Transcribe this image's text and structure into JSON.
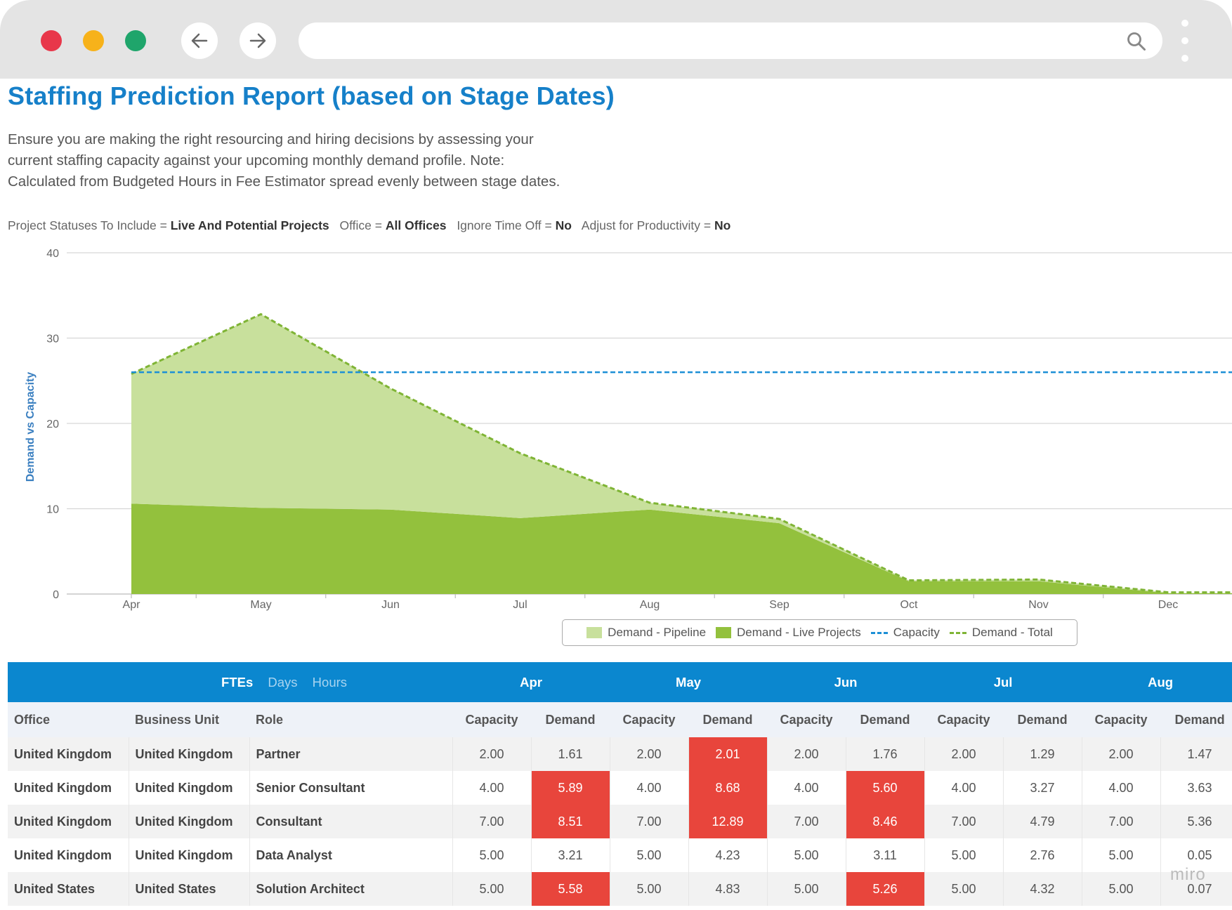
{
  "window": {
    "url": ""
  },
  "page": {
    "title": "Staffing Prediction Report (based on Stage Dates)",
    "description": [
      "Ensure you are making the right resourcing and hiring decisions by assessing your",
      "current staffing capacity against your upcoming monthly demand profile.  Note:",
      "Calculated from Budgeted Hours in Fee Estimator spread evenly between stage dates."
    ],
    "filters": [
      {
        "label": "Project Statuses To Include =",
        "value": "Live And Potential Projects"
      },
      {
        "label": "Office =",
        "value": "All Offices"
      },
      {
        "label": "Ignore Time Off =",
        "value": "No"
      },
      {
        "label": "Adjust for Productivity =",
        "value": "No"
      }
    ]
  },
  "chart_data": {
    "type": "area",
    "x": [
      "Apr",
      "May",
      "Jun",
      "Jul",
      "Aug",
      "Sep",
      "Oct",
      "Nov",
      "Dec"
    ],
    "ylabel": "Demand vs Capacity",
    "ylim": [
      0,
      40
    ],
    "yticks": [
      0,
      10,
      20,
      30,
      40
    ],
    "grid": true,
    "legend_position": "bottom",
    "series": [
      {
        "name": "Demand - Pipeline",
        "kind": "area",
        "color": "#c8e09c",
        "values": [
          15.2,
          22.7,
          14.2,
          7.6,
          0.8,
          0.5,
          0.1,
          0.2,
          0.1
        ]
      },
      {
        "name": "Demand - Live Projects",
        "kind": "area",
        "color": "#93c13d",
        "values": [
          10.6,
          10.1,
          9.9,
          8.9,
          9.9,
          8.3,
          1.5,
          1.5,
          0.1
        ]
      },
      {
        "name": "Capacity",
        "kind": "dashed-line",
        "color": "#1c8fd6",
        "values": [
          26,
          26,
          26,
          26,
          26,
          26,
          26,
          26,
          26
        ]
      },
      {
        "name": "Demand - Total",
        "kind": "dashed-line",
        "color": "#7fb435",
        "values": [
          25.8,
          32.8,
          24.1,
          16.5,
          10.7,
          8.8,
          1.6,
          1.7,
          0.2
        ]
      }
    ]
  },
  "table": {
    "units": [
      {
        "label": "FTEs",
        "active": true
      },
      {
        "label": "Days",
        "active": false
      },
      {
        "label": "Hours",
        "active": false
      }
    ],
    "months": [
      "Apr",
      "May",
      "Jun",
      "Jul",
      "Aug"
    ],
    "columns": [
      "Office",
      "Business Unit",
      "Role"
    ],
    "sub_columns": [
      "Capacity",
      "Demand"
    ],
    "rows": [
      {
        "office": "United Kingdom",
        "unit": "United Kingdom",
        "role": "Partner",
        "values": [
          "2.00",
          "1.61",
          "2.00",
          "2.01",
          "2.00",
          "1.76",
          "2.00",
          "1.29",
          "2.00",
          "1.47"
        ],
        "over": [
          false,
          false,
          false,
          true,
          false,
          false,
          false,
          false,
          false,
          false
        ]
      },
      {
        "office": "United Kingdom",
        "unit": "United Kingdom",
        "role": "Senior Consultant",
        "values": [
          "4.00",
          "5.89",
          "4.00",
          "8.68",
          "4.00",
          "5.60",
          "4.00",
          "3.27",
          "4.00",
          "3.63"
        ],
        "over": [
          false,
          true,
          false,
          true,
          false,
          true,
          false,
          false,
          false,
          false
        ]
      },
      {
        "office": "United Kingdom",
        "unit": "United Kingdom",
        "role": "Consultant",
        "values": [
          "7.00",
          "8.51",
          "7.00",
          "12.89",
          "7.00",
          "8.46",
          "7.00",
          "4.79",
          "7.00",
          "5.36"
        ],
        "over": [
          false,
          true,
          false,
          true,
          false,
          true,
          false,
          false,
          false,
          false
        ]
      },
      {
        "office": "United Kingdom",
        "unit": "United Kingdom",
        "role": "Data Analyst",
        "values": [
          "5.00",
          "3.21",
          "5.00",
          "4.23",
          "5.00",
          "3.11",
          "5.00",
          "2.76",
          "5.00",
          "0.05"
        ],
        "over": [
          false,
          false,
          false,
          false,
          false,
          false,
          false,
          false,
          false,
          false
        ]
      },
      {
        "office": "United States",
        "unit": "United States",
        "role": "Solution Architect",
        "values": [
          "5.00",
          "5.58",
          "5.00",
          "4.83",
          "5.00",
          "5.26",
          "5.00",
          "4.32",
          "5.00",
          "0.07"
        ],
        "over": [
          false,
          true,
          false,
          false,
          false,
          true,
          false,
          false,
          false,
          false
        ]
      }
    ]
  },
  "watermark": "miro",
  "colors": {
    "accent": "#1680c9",
    "table_header": "#0b87cf",
    "over_capacity": "#e8453c"
  }
}
